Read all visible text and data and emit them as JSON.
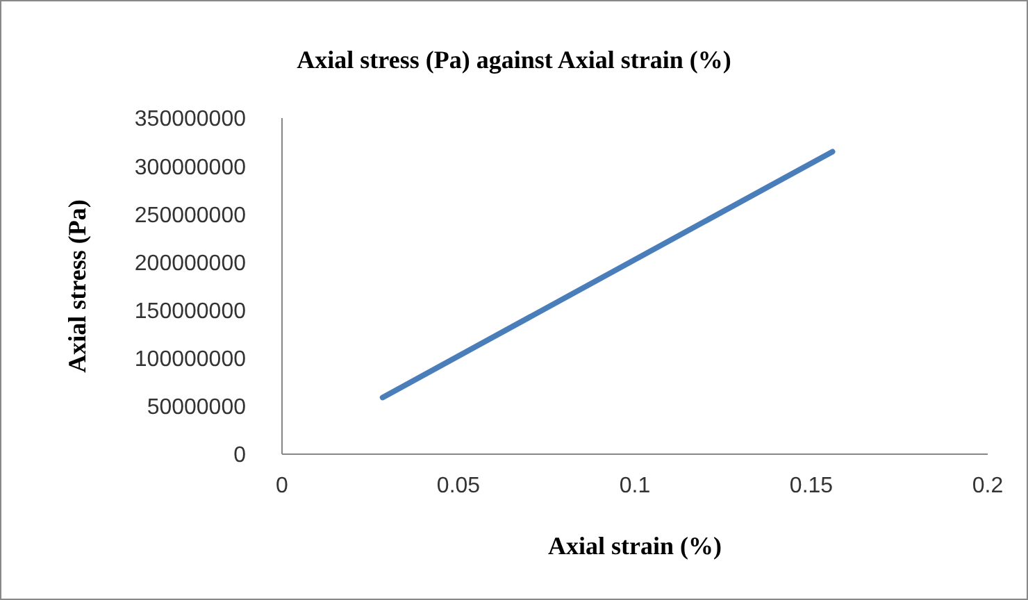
{
  "chart_data": {
    "type": "line",
    "title": "Axial stress  (Pa) against Axial strain (%)",
    "xlabel": "Axial strain (%)",
    "ylabel": "Axial stress  (Pa)",
    "series": [
      {
        "color": "#4a7ebb",
        "x": [
          0.0285,
          0.156
        ],
        "values": [
          59000000,
          315000000
        ]
      }
    ],
    "xlim": [
      0,
      0.2
    ],
    "xticks": [
      0,
      0.05,
      0.1,
      0.15,
      0.2
    ],
    "ylim": [
      0,
      350000000
    ],
    "yticks": [
      0,
      50000000,
      100000000,
      150000000,
      200000000,
      250000000,
      300000000,
      350000000
    ],
    "grid": false,
    "legend": false,
    "marker": "none",
    "line_style": "solid"
  }
}
